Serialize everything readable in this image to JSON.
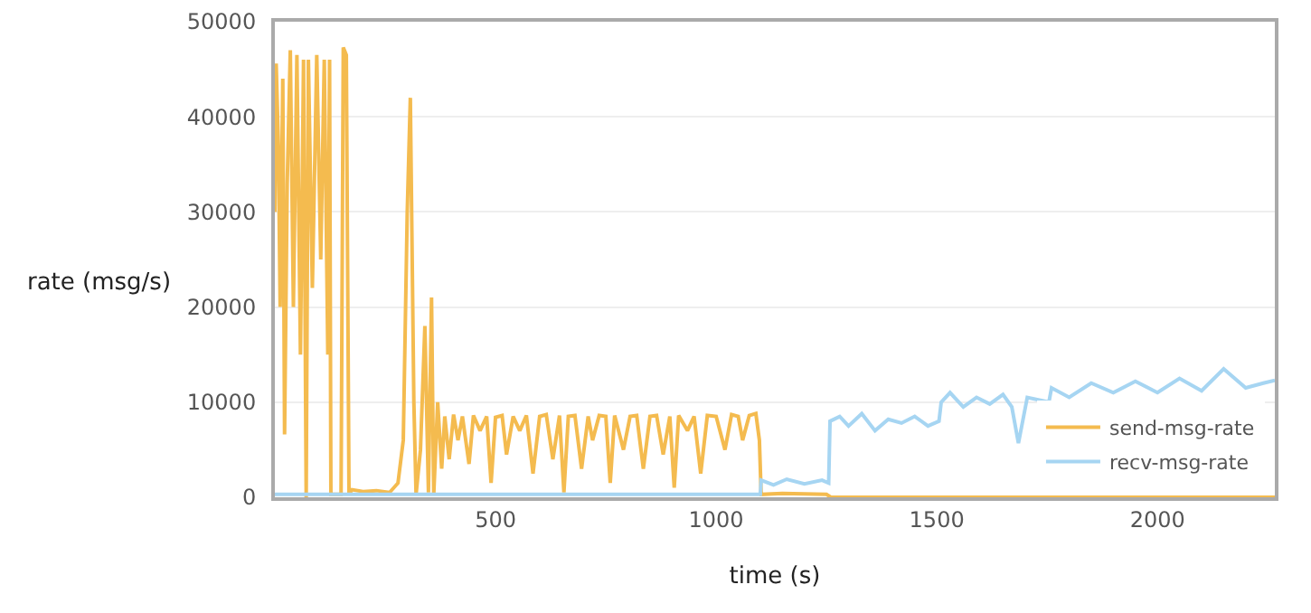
{
  "chart_data": {
    "type": "line",
    "xlabel": "time (s)",
    "ylabel": "rate (msg/s)",
    "xlim": [
      0,
      2266
    ],
    "xticks": [
      500,
      1000,
      1500,
      2000
    ],
    "ylim": [
      0,
      50000
    ],
    "yticks": [
      0,
      10000,
      20000,
      30000,
      40000,
      50000
    ],
    "grid": "y",
    "legend": "bottom right",
    "marker": "none",
    "line_style": "solid",
    "series": [
      {
        "name": "send-msg-rate",
        "color": "#f4bb4f",
        "x": [
          0,
          3,
          8,
          12,
          18,
          22,
          28,
          35,
          42,
          50,
          58,
          65,
          71,
          76,
          85,
          95,
          104,
          112,
          120,
          124,
          127,
          150,
          155,
          162,
          168,
          175,
          200,
          230,
          260,
          279,
          291,
          300,
          307,
          315,
          320,
          330,
          340,
          348,
          355,
          360,
          369,
          378,
          385,
          395,
          405,
          415,
          425,
          440,
          450,
          465,
          480,
          490,
          500,
          515,
          525,
          540,
          555,
          570,
          585,
          600,
          615,
          630,
          645,
          655,
          665,
          680,
          695,
          710,
          720,
          735,
          750,
          760,
          770,
          790,
          805,
          820,
          835,
          850,
          865,
          880,
          895,
          905,
          915,
          935,
          950,
          965,
          980,
          1000,
          1020,
          1035,
          1050,
          1060,
          1075,
          1090,
          1098,
          1102,
          1150,
          1250,
          1260,
          1500,
          2000,
          2266
        ],
        "values": [
          30000,
          45600,
          37000,
          20000,
          44000,
          6600,
          33000,
          47000,
          20000,
          46500,
          15000,
          46000,
          0,
          46000,
          22000,
          46500,
          25000,
          46000,
          15000,
          46000,
          300,
          300,
          47300,
          46500,
          300,
          800,
          600,
          700,
          500,
          1500,
          6000,
          30000,
          42000,
          10000,
          300,
          5000,
          18000,
          500,
          21000,
          300,
          10000,
          3000,
          8500,
          4000,
          8700,
          6000,
          8500,
          3500,
          8600,
          7000,
          8500,
          1500,
          8400,
          8600,
          4500,
          8500,
          7000,
          8600,
          2500,
          8500,
          8700,
          4000,
          8600,
          500,
          8500,
          8600,
          3000,
          8500,
          6000,
          8600,
          8500,
          1500,
          8600,
          5000,
          8500,
          8600,
          3000,
          8500,
          8600,
          4500,
          8500,
          1000,
          8600,
          7000,
          8500,
          2500,
          8600,
          8500,
          5000,
          8700,
          8500,
          6000,
          8600,
          8800,
          6000,
          300,
          400,
          300,
          0,
          0,
          0,
          0
        ]
      },
      {
        "name": "recv-msg-rate",
        "color": "#a6d5f2",
        "x": [
          0,
          1100,
          1102,
          1130,
          1160,
          1200,
          1240,
          1255,
          1258,
          1280,
          1300,
          1330,
          1360,
          1390,
          1420,
          1450,
          1480,
          1505,
          1510,
          1530,
          1560,
          1590,
          1620,
          1650,
          1670,
          1685,
          1705,
          1754,
          1760,
          1800,
          1850,
          1900,
          1950,
          2000,
          2050,
          2100,
          2150,
          2200,
          2240,
          2266
        ],
        "values": [
          300,
          300,
          1800,
          1300,
          1900,
          1400,
          1800,
          1500,
          8000,
          8500,
          7500,
          8800,
          7000,
          8200,
          7800,
          8500,
          7500,
          8000,
          10000,
          11000,
          9500,
          10500,
          9800,
          10800,
          9500,
          5700,
          10500,
          10000,
          11500,
          10500,
          12000,
          11000,
          12200,
          11000,
          12500,
          11200,
          13500,
          11500,
          12000,
          12300
        ]
      }
    ]
  }
}
